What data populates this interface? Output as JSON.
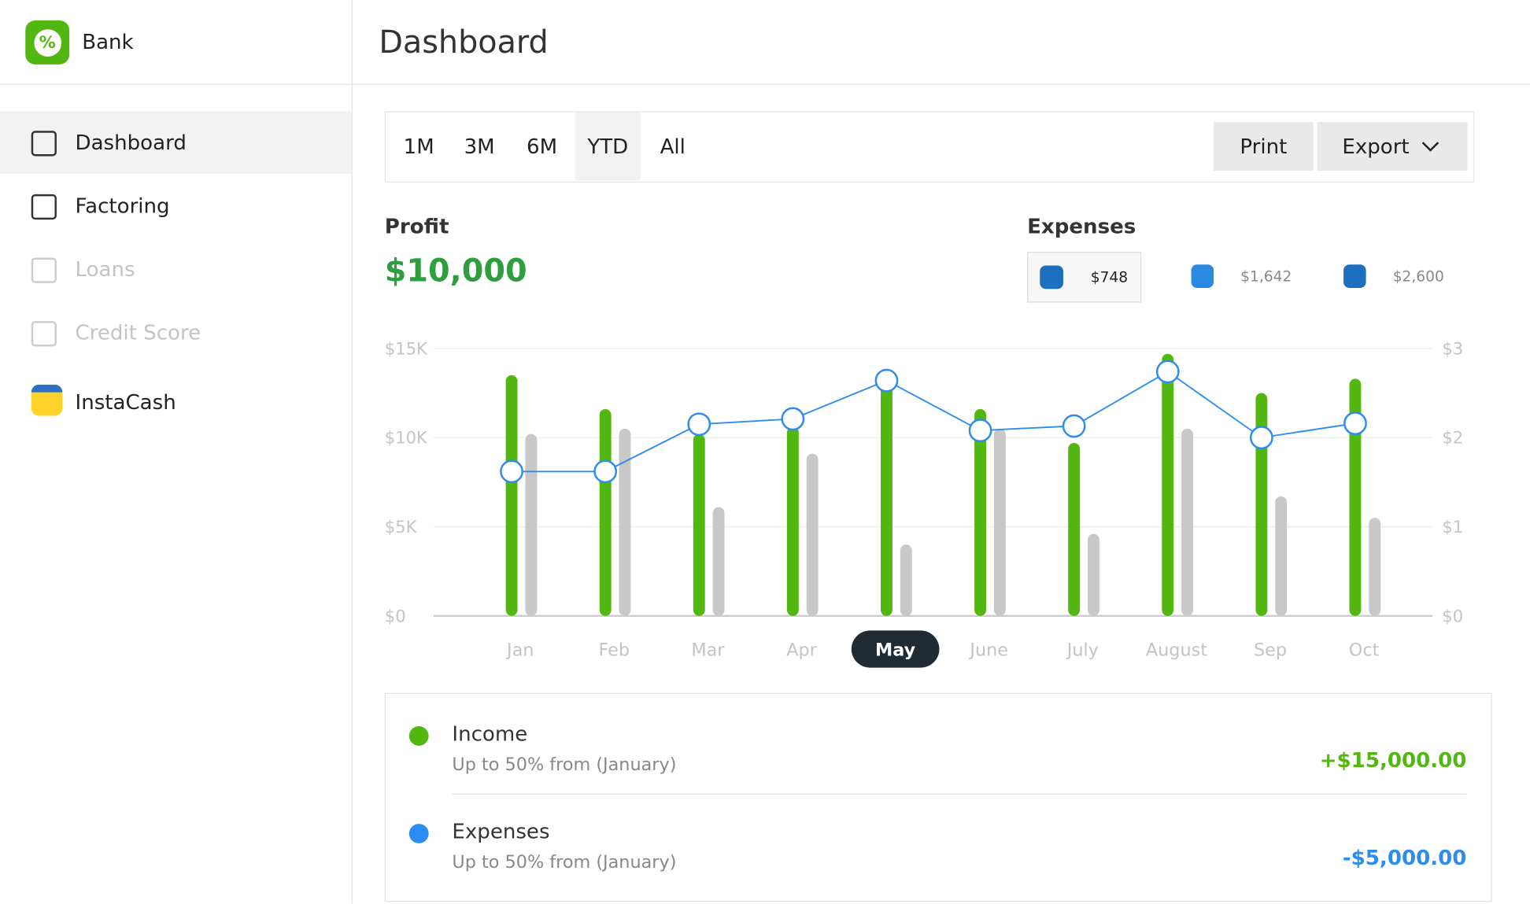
{
  "app": {
    "name": "Bank"
  },
  "nav": [
    {
      "label": "Dashboard",
      "active": true
    },
    {
      "label": "Factoring"
    },
    {
      "label": "Loans",
      "disabled": true
    },
    {
      "label": "Credit Score",
      "disabled": true
    },
    {
      "label": "InstaCash"
    }
  ],
  "header": {
    "title": "Dashboard"
  },
  "ranges": [
    "1M",
    "3M",
    "6M",
    "YTD",
    "All"
  ],
  "active_range": 3,
  "buttons": {
    "print": "Print",
    "export": "Export"
  },
  "profit": {
    "label": "Profit",
    "value": "$10,000"
  },
  "expenses": {
    "label": "Expenses",
    "items": [
      "$748",
      "$1,642",
      "$2,600"
    ],
    "selected": 0
  },
  "chart_data": {
    "type": "bar",
    "categories": [
      "Jan",
      "Feb",
      "Mar",
      "Apr",
      "May",
      "June",
      "July",
      "August",
      "Sep",
      "Oct"
    ],
    "selected_index": 4,
    "series": [
      {
        "color": "#52b811",
        "values": [
          13500,
          11600,
          10200,
          10600,
          13100,
          11600,
          9700,
          14700,
          12500,
          13300
        ]
      },
      {
        "color": "#c8c8c8",
        "values": [
          10200,
          10500,
          6100,
          9100,
          4000,
          10500,
          4600,
          10500,
          6700,
          5500
        ]
      },
      {
        "type": "line",
        "axis": "y2",
        "color": "#2d8cf0",
        "values": [
          1.62,
          1.62,
          2.15,
          2.21,
          2.64,
          2.08,
          2.13,
          2.74,
          2.0,
          2.16
        ]
      }
    ],
    "ylim": [
      0,
      15000
    ],
    "yticks": [
      {
        "value": 0,
        "label": "$0"
      },
      {
        "value": 5000,
        "label": "$5K"
      },
      {
        "value": 10000,
        "label": "$10K"
      },
      {
        "value": 15000,
        "label": "$15K"
      }
    ],
    "y2lim": [
      0,
      3
    ],
    "y2ticks": [
      {
        "value": 0,
        "label": "$0"
      },
      {
        "value": 1,
        "label": "$1.00"
      },
      {
        "value": 2,
        "label": "$2.00"
      },
      {
        "value": 3,
        "label": "$3.00"
      }
    ],
    "grid": true
  },
  "summary": [
    {
      "label": "Income",
      "note": "Up to 50% from (January)",
      "amount": "+$15,000.00",
      "color": "#52b811"
    },
    {
      "label": "Expenses",
      "note": "Up to 50% from (January)",
      "amount": "-$5,000.00",
      "color": "#2d8cf0"
    }
  ]
}
